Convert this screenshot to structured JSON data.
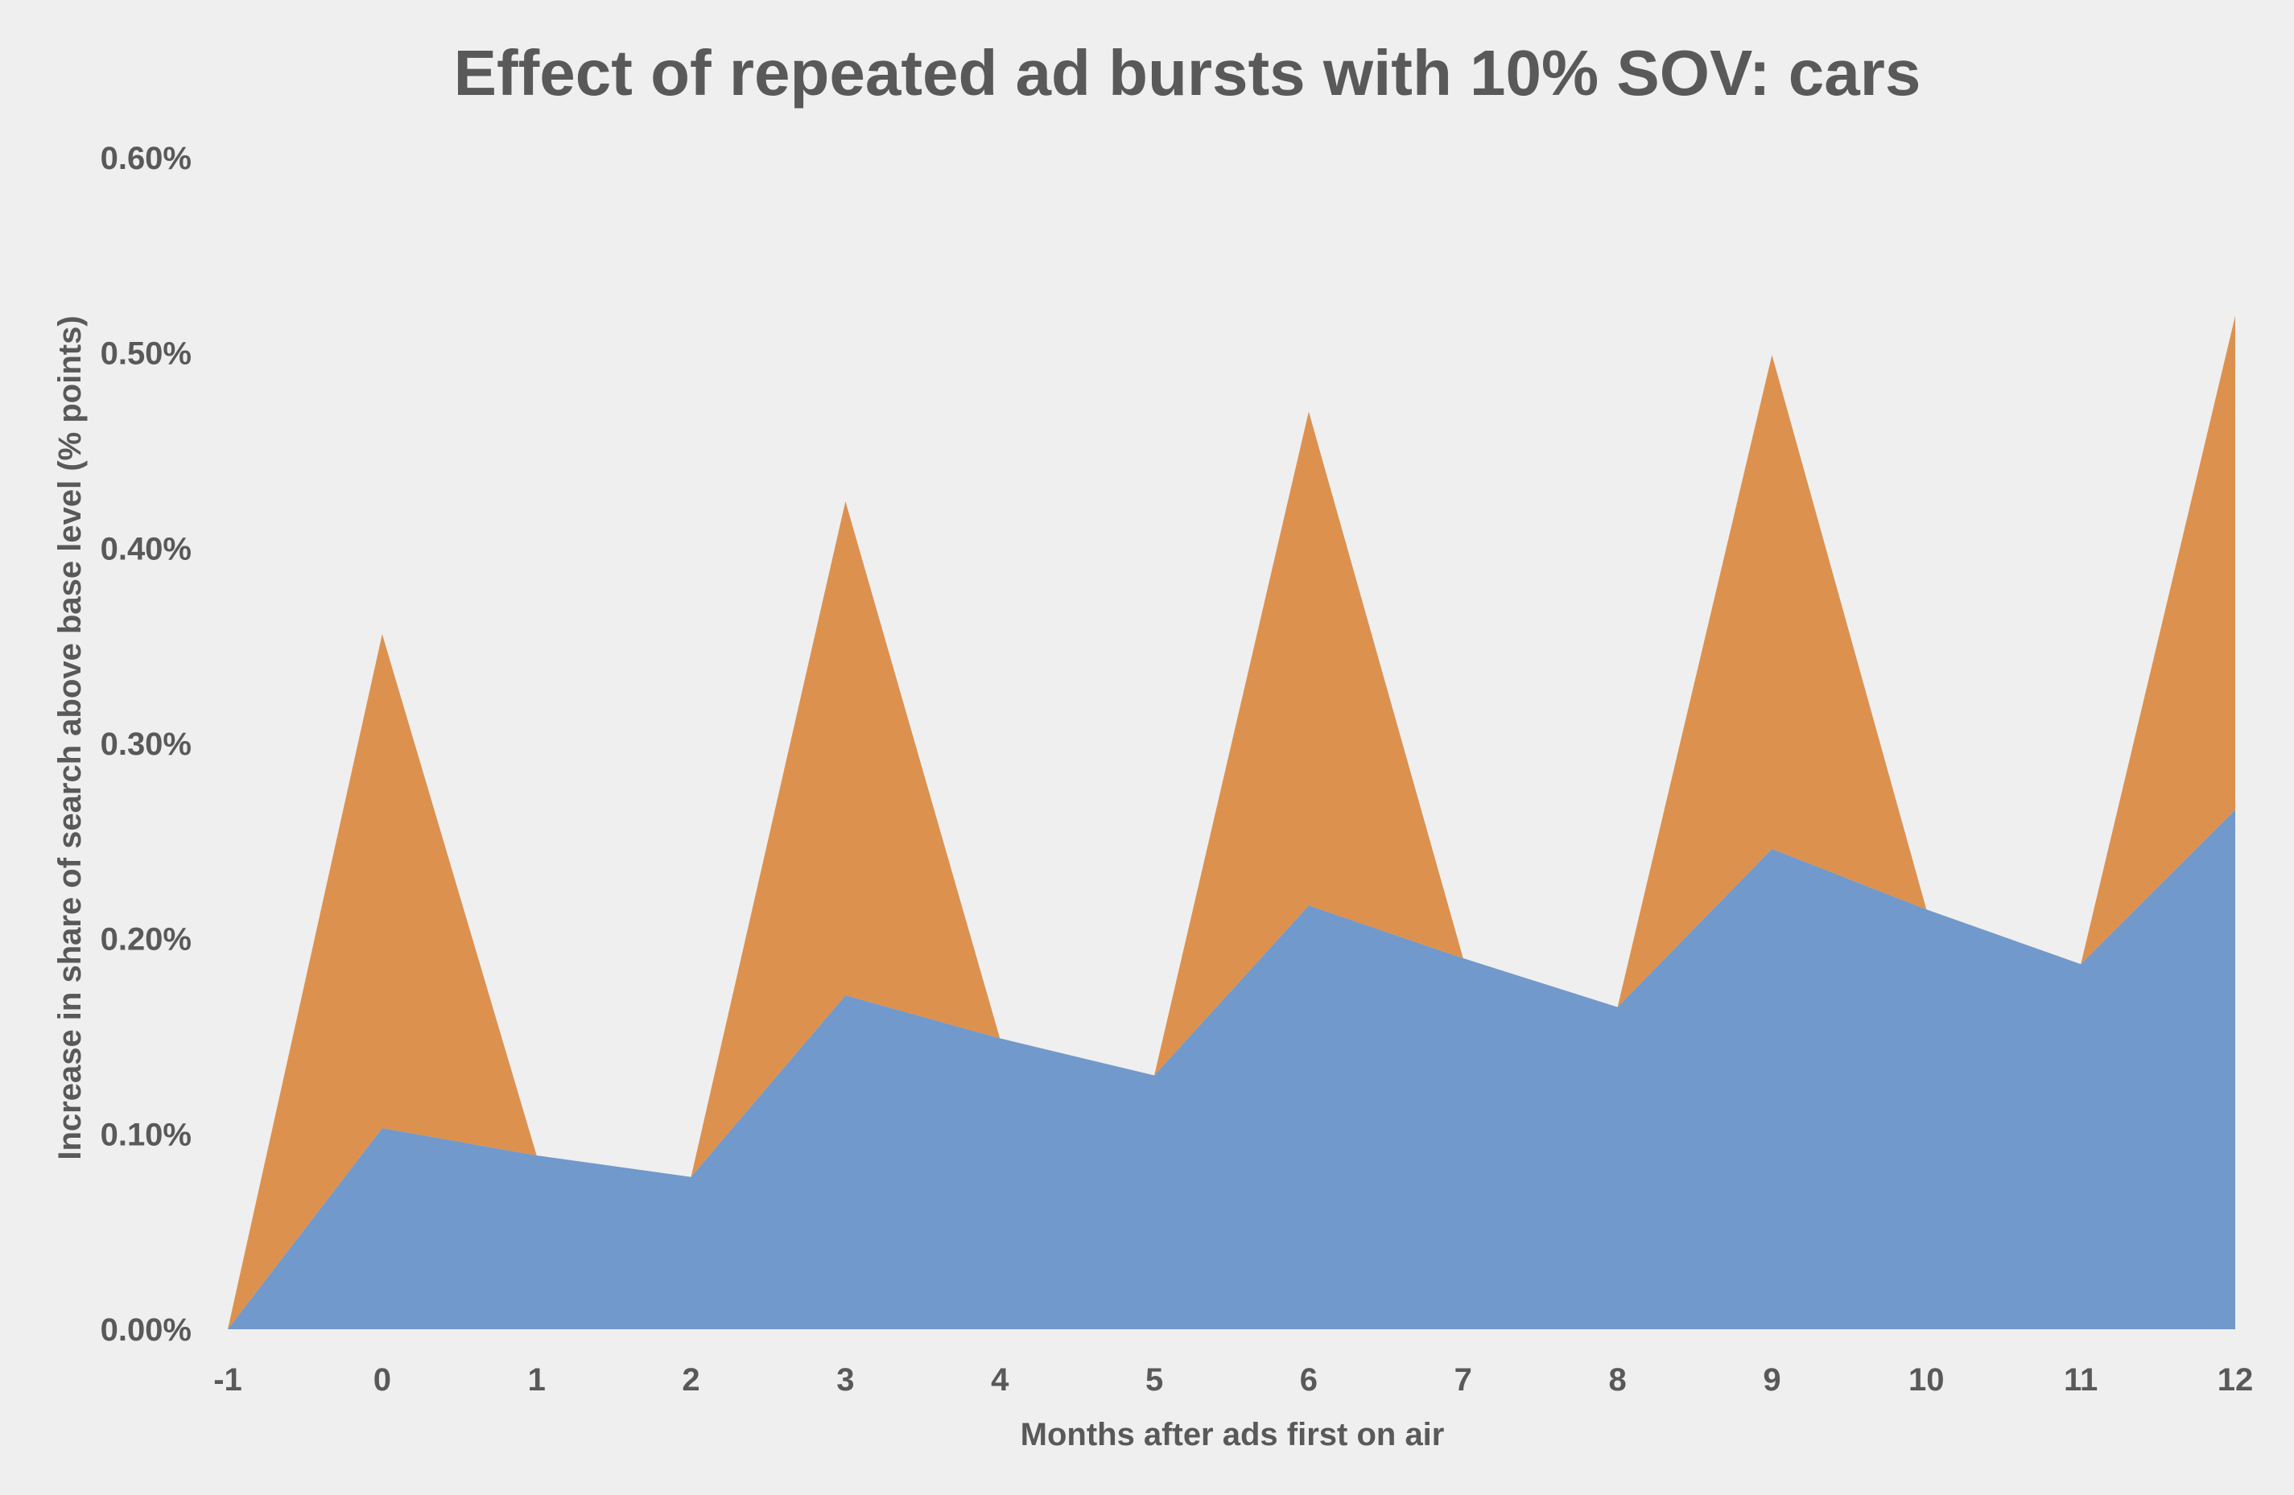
{
  "chart_data": {
    "type": "area",
    "stacked": true,
    "title": "Effect of repeated ad bursts with 10% SOV: cars",
    "xlabel": "Months after ads first on air",
    "ylabel": "Increase in share of search above base level (% points)",
    "x": [
      -1,
      0,
      1,
      2,
      3,
      4,
      5,
      6,
      7,
      8,
      9,
      10,
      11,
      12
    ],
    "ylim": [
      0,
      0.006
    ],
    "y_ticks": [
      "0.00%",
      "0.10%",
      "0.20%",
      "0.30%",
      "0.40%",
      "0.50%",
      "0.60%"
    ],
    "y_tick_values": [
      0,
      0.001,
      0.002,
      0.003,
      0.004,
      0.005,
      0.006
    ],
    "grid": false,
    "legend": "none",
    "series": [
      {
        "color": "#7199cb",
        "values": [
          0,
          0.00103,
          0.00089,
          0.00078,
          0.00171,
          0.00149,
          0.0013,
          0.00217,
          0.0019,
          0.00165,
          0.00246,
          0.00215,
          0.00187,
          0.00266
        ]
      },
      {
        "color": "#dd914f",
        "values": [
          0,
          0.00253,
          0,
          0,
          0.00253,
          0,
          0,
          0.00253,
          0,
          0,
          0.00253,
          0,
          0,
          0.00253
        ]
      }
    ],
    "background_color": "#efefef",
    "text_color": "#595959"
  }
}
